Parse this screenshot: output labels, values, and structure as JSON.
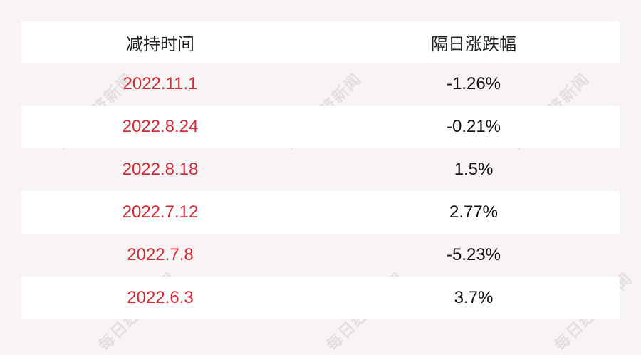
{
  "watermark": "每日经济新闻",
  "chart_data": {
    "type": "table",
    "columns": [
      "减持时间",
      "隔日涨跌幅"
    ],
    "rows": [
      [
        "2022.11.1",
        "-1.26%"
      ],
      [
        "2022.8.24",
        "-0.21%"
      ],
      [
        "2022.8.18",
        "1.5%"
      ],
      [
        "2022.7.12",
        "2.77%"
      ],
      [
        "2022.7.8",
        "-5.23%"
      ],
      [
        "2022.6.3",
        "3.7%"
      ]
    ],
    "colors": {
      "date_text": "#d52b35",
      "value_text": "#111111",
      "background": "#f8f4f5",
      "alt_row": "#ffffff"
    }
  }
}
